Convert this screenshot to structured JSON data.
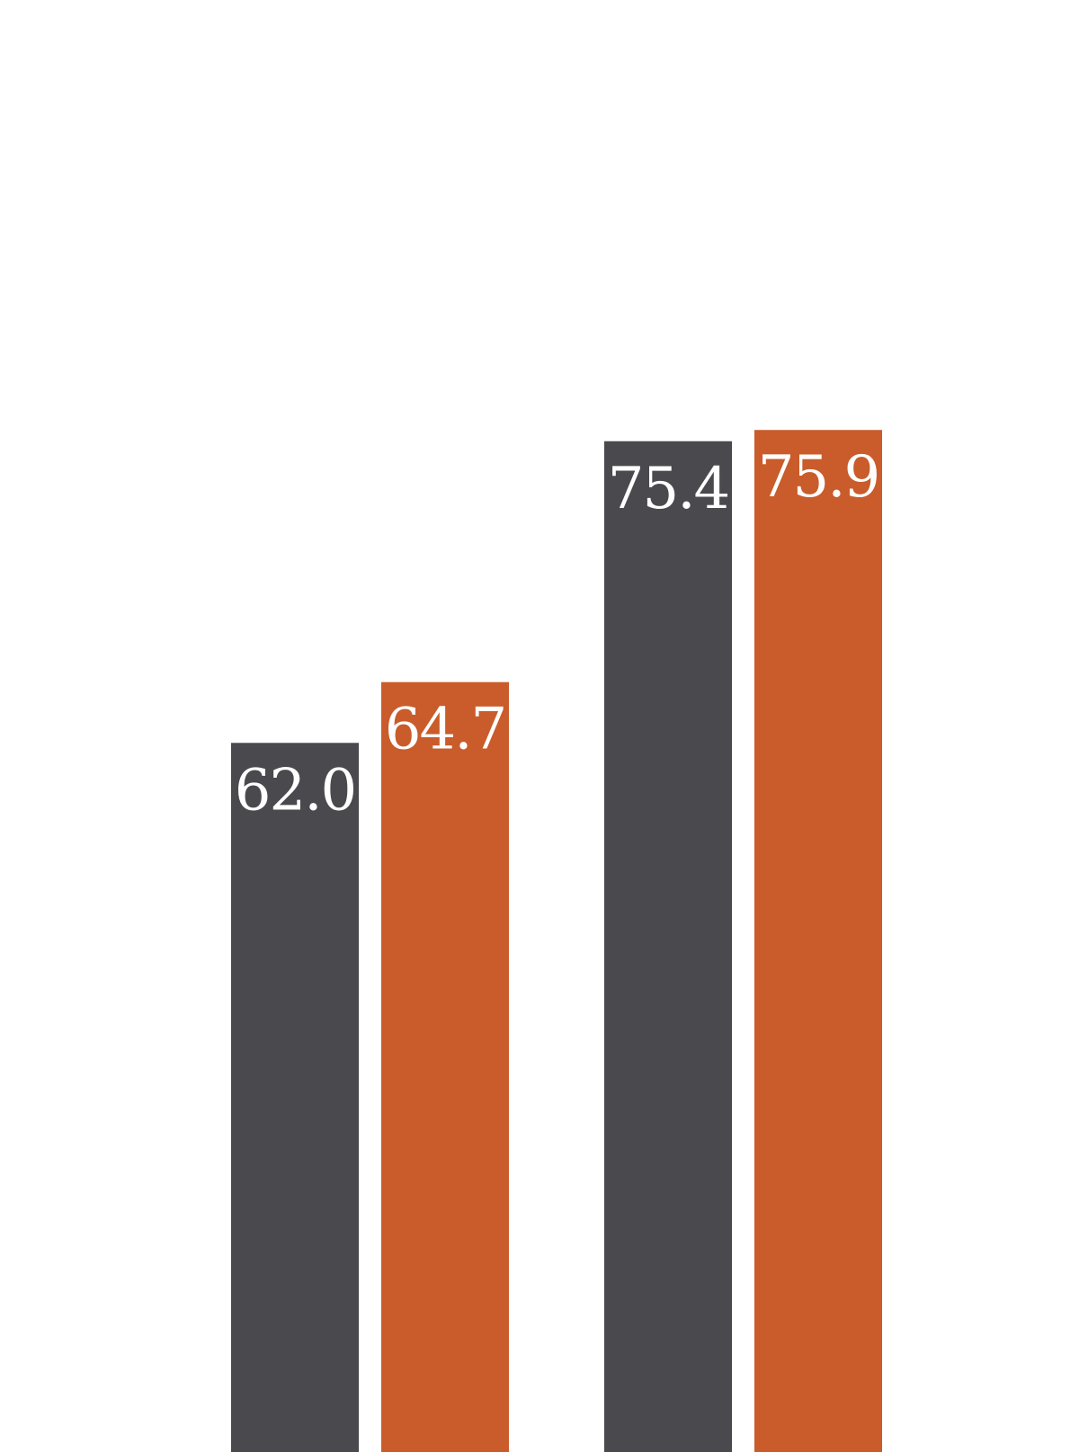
{
  "chart_data": {
    "type": "bar",
    "categories": [
      "",
      ""
    ],
    "series": [
      {
        "values": [
          62.0,
          75.4
        ],
        "color": "#4a494e"
      },
      {
        "values": [
          64.7,
          75.9
        ],
        "color": "#c95c2a"
      }
    ],
    "data_labels": [
      [
        "62.0",
        "75.4"
      ],
      [
        "64.7",
        "75.9"
      ]
    ],
    "ylim": [
      30.5,
      95.0
    ],
    "grid": false,
    "legend": "none",
    "title": "",
    "xlabel": "",
    "ylabel": ""
  }
}
